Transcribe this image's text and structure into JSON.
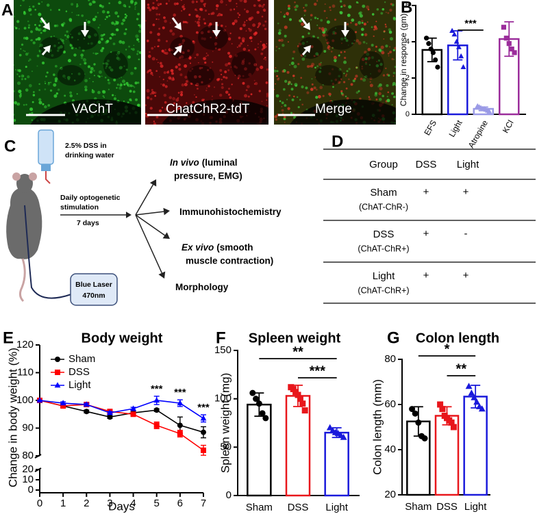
{
  "figure": {
    "A": {
      "letter": "A",
      "images": [
        "VAChT",
        "ChatChR2-tdT",
        "Merge"
      ]
    },
    "C": {
      "letter": "C",
      "dss": [
        "2.5% DSS in",
        "drinking water"
      ],
      "stimulation": [
        "Daily optogenetic",
        "stimulation"
      ],
      "duration": "7 days",
      "laser": [
        "Blue Laser",
        "470nm"
      ],
      "outcomes": [
        {
          "italic": "In vivo",
          "lines": [
            "(luminal",
            "pressure, EMG)"
          ]
        },
        {
          "lines": [
            "Immunohistochemistry"
          ]
        },
        {
          "italic": "Ex vivo",
          "lines": [
            "(smooth",
            "muscle contraction)"
          ]
        },
        {
          "lines": [
            "Morphology"
          ]
        }
      ]
    },
    "D": {
      "letter": "D",
      "table": {
        "header": [
          "Group",
          "DSS",
          "Light"
        ],
        "rows": [
          [
            "Sham",
            "(ChAT-ChR-)",
            "+",
            "+"
          ],
          [
            "DSS",
            "(ChAT-ChR+)",
            "+",
            "-"
          ],
          [
            "Light",
            "(ChAT-ChR+)",
            "+",
            "+"
          ]
        ]
      }
    }
  },
  "chart_data": [
    {
      "type": "bar",
      "panel": "B",
      "ylabel": "Change in response (gm)",
      "categories": [
        "EFS",
        "Light",
        "Atropine",
        "KCl"
      ],
      "values": [
        3.55,
        3.8,
        0.3,
        4.15
      ],
      "errors": [
        0.65,
        0.8,
        0.1,
        0.95
      ],
      "points": [
        [
          4.2,
          3.9,
          3.6,
          3.4,
          3.0,
          2.6
        ],
        [
          4.6,
          4.4,
          4.0,
          3.7,
          3.2,
          2.6
        ],
        [
          0.45,
          0.4,
          0.35,
          0.3,
          0.3,
          0.25,
          0.2,
          0.15
        ],
        [
          4.8,
          4.2,
          3.9,
          3.6,
          3.4
        ]
      ],
      "colors": [
        "#000000",
        "#1a1adb",
        "#9a9ae6",
        "#9b2d9b"
      ],
      "markers": [
        "circle",
        "triangle",
        "triangle",
        "square"
      ],
      "ylim": [
        0,
        6
      ],
      "yticks": [
        0,
        2,
        4,
        6
      ],
      "significance": [
        {
          "label": "***",
          "from": "Light",
          "to": "Atropine"
        }
      ]
    },
    {
      "type": "line",
      "panel": "E",
      "title": "Body weight",
      "xlabel": "Days",
      "ylabel": "Change in body weight (%)",
      "x": [
        0,
        1,
        2,
        3,
        4,
        5,
        6,
        7
      ],
      "series": [
        {
          "name": "Sham",
          "color": "#000000",
          "marker": "circle",
          "values": [
            100,
            98,
            96,
            94,
            95.5,
            96.5,
            91,
            88.5
          ],
          "errors": [
            0,
            0.5,
            0.5,
            0.5,
            0.5,
            0.5,
            3,
            2
          ]
        },
        {
          "name": "DSS",
          "color": "#ff0000",
          "marker": "square",
          "values": [
            100,
            98,
            98.5,
            96,
            95,
            91,
            88,
            82
          ],
          "errors": [
            0,
            0.5,
            0.5,
            0.5,
            0.5,
            1.2,
            1.2,
            1.8
          ]
        },
        {
          "name": "Light",
          "color": "#0000ff",
          "marker": "triangle",
          "values": [
            100,
            99,
            98.5,
            95.5,
            97,
            100,
            99,
            93.5
          ],
          "errors": [
            0,
            0.5,
            0.5,
            0.5,
            0.5,
            1.5,
            1.2,
            1.3
          ]
        }
      ],
      "annotations": [
        {
          "text": "***",
          "x": 5
        },
        {
          "text": "***",
          "x": 6
        },
        {
          "text": "***",
          "x": 7
        }
      ],
      "xlim": [
        0,
        7
      ],
      "xticks": [
        0,
        1,
        2,
        3,
        4,
        5,
        6,
        7
      ],
      "ylim": [
        0,
        120
      ],
      "ybreak": [
        20,
        80
      ],
      "yticks": [
        0,
        10,
        20,
        80,
        90,
        100,
        110,
        120
      ],
      "legend": "upper left"
    },
    {
      "type": "bar",
      "panel": "F",
      "title": "Spleen weight",
      "ylabel": "Spleen weight (mg)",
      "categories": [
        "Sham",
        "DSS",
        "Light"
      ],
      "values": [
        94,
        103,
        65
      ],
      "errors": [
        12,
        11,
        5
      ],
      "points": [
        [
          106,
          100,
          95,
          85,
          80
        ],
        [
          112,
          110,
          107,
          104,
          100,
          95,
          88
        ],
        [
          70,
          67,
          65,
          64,
          62,
          60
        ]
      ],
      "colors": [
        "#000000",
        "#e8161b",
        "#1a1adb"
      ],
      "markers": [
        "circle",
        "square",
        "triangle"
      ],
      "ylim": [
        0,
        150
      ],
      "yticks": [
        0,
        50,
        100,
        150
      ],
      "significance": [
        {
          "label": "**",
          "from": "Sham",
          "to": "Light"
        },
        {
          "label": "***",
          "from": "DSS",
          "to": "Light"
        }
      ]
    },
    {
      "type": "bar",
      "panel": "G",
      "title": "Colon length",
      "ylabel": "Colon length (mm)",
      "categories": [
        "Sham",
        "DSS",
        "Light"
      ],
      "values": [
        52.5,
        55,
        63.5
      ],
      "errors": [
        6.5,
        4,
        5
      ],
      "points": [
        [
          58,
          56,
          52,
          46,
          45
        ],
        [
          60,
          58,
          55,
          54,
          53,
          52,
          50
        ],
        [
          68,
          65,
          63,
          61,
          59,
          58
        ]
      ],
      "colors": [
        "#000000",
        "#e8161b",
        "#1a1adb"
      ],
      "markers": [
        "circle",
        "square",
        "triangle"
      ],
      "ylim": [
        20,
        80
      ],
      "yticks": [
        20,
        40,
        60,
        80
      ],
      "significance": [
        {
          "label": "*",
          "from": "Sham",
          "to": "Light"
        },
        {
          "label": "**",
          "from": "DSS",
          "to": "Light"
        }
      ]
    }
  ]
}
